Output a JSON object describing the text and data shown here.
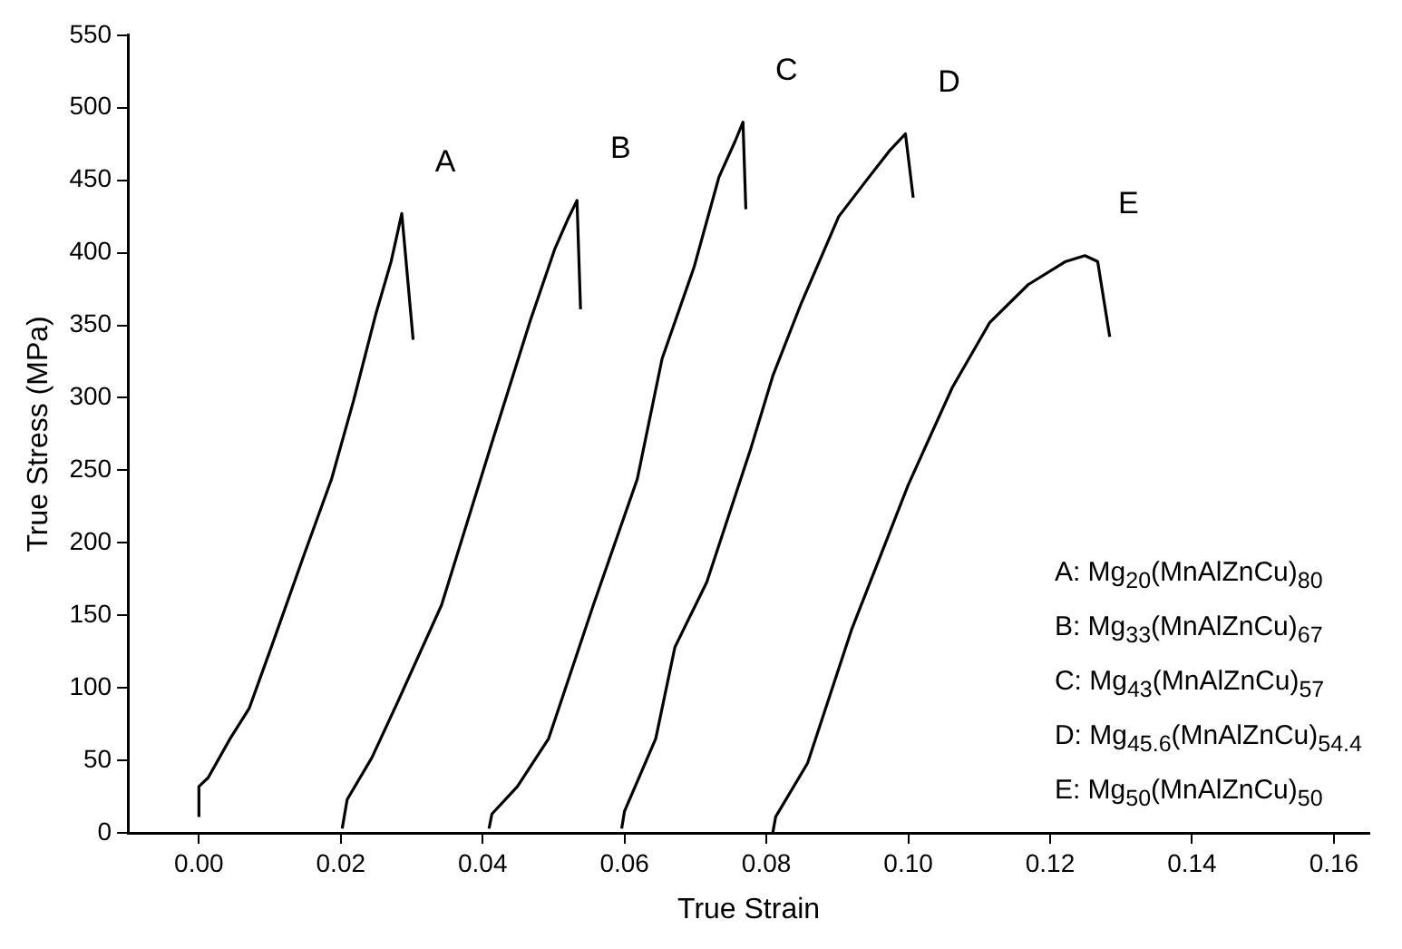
{
  "chart_data": {
    "type": "line",
    "xlabel": "True Strain",
    "ylabel": "True Stress (MPa)",
    "xlim": [
      -0.01,
      0.165
    ],
    "xticks": [
      {
        "value": 0,
        "label": "0.00"
      },
      {
        "value": 0.02,
        "label": "0.02"
      },
      {
        "value": 0.04,
        "label": "0.04"
      },
      {
        "value": 0.06,
        "label": "0.06"
      },
      {
        "value": 0.08,
        "label": "0.08"
      },
      {
        "value": 0.1,
        "label": "0.10"
      },
      {
        "value": 0.12,
        "label": "0.12"
      },
      {
        "value": 0.14,
        "label": "0.14"
      },
      {
        "value": 0.16,
        "label": "0.16"
      }
    ],
    "ylim": [
      0,
      550
    ],
    "yticks": [
      0,
      50,
      100,
      150,
      200,
      250,
      300,
      350,
      400,
      450,
      500,
      550
    ],
    "grid": false,
    "marker": "none",
    "line_style": "solid",
    "series": [
      {
        "name": "A",
        "color": "#000000",
        "x": [
          0,
          0,
          0.0013,
          0.0044,
          0.0071,
          0.0102,
          0.0147,
          0.0187,
          0.0218,
          0.0249,
          0.0271,
          0.0286,
          0.0302
        ],
        "values": [
          11,
          32,
          38,
          65,
          86,
          128,
          190,
          244,
          298,
          357,
          394,
          427,
          340
        ]
      },
      {
        "name": "B",
        "color": "#000000",
        "x": [
          0.0202,
          0.0209,
          0.0244,
          0.028,
          0.0342,
          0.0413,
          0.0467,
          0.0502,
          0.052,
          0.0533,
          0.0538
        ],
        "values": [
          3,
          23,
          52,
          90,
          157,
          269,
          353,
          403,
          423,
          436,
          361
        ]
      },
      {
        "name": "C",
        "color": "#000000",
        "x": [
          0.0409,
          0.0413,
          0.0449,
          0.0493,
          0.0556,
          0.0618,
          0.0653,
          0.0698,
          0.0733,
          0.0756,
          0.0767,
          0.0771
        ],
        "values": [
          3,
          13,
          32,
          65,
          157,
          244,
          327,
          390,
          452,
          477,
          490,
          430
        ]
      },
      {
        "name": "D",
        "color": "#000000",
        "x": [
          0.0596,
          0.06,
          0.0644,
          0.0671,
          0.0716,
          0.0778,
          0.0809,
          0.0849,
          0.0902,
          0.0938,
          0.0973,
          0.0996,
          0.1007
        ],
        "values": [
          3,
          15,
          65,
          128,
          173,
          265,
          315,
          365,
          425,
          448,
          470,
          482,
          438
        ]
      },
      {
        "name": "E",
        "color": "#000000",
        "x": [
          0.0809,
          0.0813,
          0.0858,
          0.092,
          0.1,
          0.1062,
          0.1115,
          0.1169,
          0.1222,
          0.1249,
          0.1267,
          0.1284
        ],
        "values": [
          0,
          11,
          48,
          140,
          240,
          307,
          352,
          378,
          394,
          398,
          394,
          342
        ]
      }
    ],
    "annotations": [
      "A: Mg$_{20}$(MnAlZnCu)$_{80}$",
      "B: Mg$_{33}$(MnAlZnCu)$_{67}$",
      "C: Mg$_{43}$(MnAlZnCu)$_{57}$",
      "D: Mg$_{45.6}$(MnAlZnCu)$_{54.4}$",
      "E: Mg$_{50}$(MnAlZnCu)$_{50}$"
    ]
  }
}
